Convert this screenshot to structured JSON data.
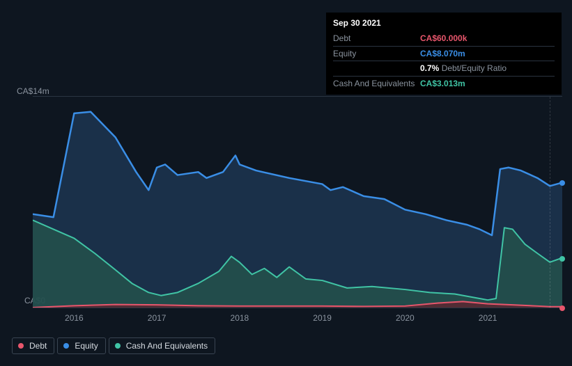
{
  "tooltip": {
    "date": "Sep 30 2021",
    "rows": [
      {
        "label": "Debt",
        "value": "CA$60.000k",
        "color": "#e8566c"
      },
      {
        "label": "Equity",
        "value": "CA$8.070m",
        "color": "#3a8ee6"
      },
      {
        "label": "",
        "value_prefix": "0.7%",
        "value_suffix": " Debt/Equity Ratio",
        "color": "#ffffff"
      },
      {
        "label": "Cash And Equivalents",
        "value": "CA$3.013m",
        "color": "#40c4a5"
      }
    ]
  },
  "chart": {
    "type": "area",
    "background_color": "#0e1620",
    "grid_color": "#2b3542",
    "y_axis": {
      "min": 0,
      "max": 14,
      "top_label": "CA$14m",
      "bottom_label": "CA$0"
    },
    "x_axis": {
      "min": 2015.5,
      "max": 2021.9,
      "ticks": [
        2016,
        2017,
        2018,
        2019,
        2020,
        2021
      ]
    },
    "cursor_x": 2021.75,
    "series": [
      {
        "name": "Equity",
        "color": "#3a8ee6",
        "fill": "#1f3a57",
        "fill_opacity": 0.75,
        "line_width": 2.5,
        "data": [
          [
            2015.5,
            6.2
          ],
          [
            2015.75,
            6.0
          ],
          [
            2016.0,
            12.9
          ],
          [
            2016.2,
            13.0
          ],
          [
            2016.5,
            11.3
          ],
          [
            2016.75,
            9.0
          ],
          [
            2016.9,
            7.8
          ],
          [
            2017.0,
            9.3
          ],
          [
            2017.1,
            9.5
          ],
          [
            2017.25,
            8.8
          ],
          [
            2017.5,
            9.0
          ],
          [
            2017.6,
            8.6
          ],
          [
            2017.8,
            9.0
          ],
          [
            2017.95,
            10.1
          ],
          [
            2018.0,
            9.5
          ],
          [
            2018.2,
            9.1
          ],
          [
            2018.6,
            8.6
          ],
          [
            2019.0,
            8.2
          ],
          [
            2019.1,
            7.8
          ],
          [
            2019.25,
            8.0
          ],
          [
            2019.5,
            7.4
          ],
          [
            2019.75,
            7.2
          ],
          [
            2020.0,
            6.5
          ],
          [
            2020.25,
            6.2
          ],
          [
            2020.5,
            5.8
          ],
          [
            2020.75,
            5.5
          ],
          [
            2020.9,
            5.2
          ],
          [
            2021.05,
            4.8
          ],
          [
            2021.15,
            9.2
          ],
          [
            2021.25,
            9.3
          ],
          [
            2021.4,
            9.1
          ],
          [
            2021.6,
            8.6
          ],
          [
            2021.75,
            8.07
          ],
          [
            2021.9,
            8.3
          ]
        ]
      },
      {
        "name": "Cash And Equivalents",
        "color": "#40c4a5",
        "fill": "#25564c",
        "fill_opacity": 0.75,
        "line_width": 2,
        "data": [
          [
            2015.5,
            5.8
          ],
          [
            2015.75,
            5.2
          ],
          [
            2016.0,
            4.6
          ],
          [
            2016.25,
            3.6
          ],
          [
            2016.5,
            2.5
          ],
          [
            2016.7,
            1.6
          ],
          [
            2016.9,
            1.0
          ],
          [
            2017.05,
            0.8
          ],
          [
            2017.25,
            1.0
          ],
          [
            2017.5,
            1.6
          ],
          [
            2017.75,
            2.4
          ],
          [
            2017.9,
            3.4
          ],
          [
            2018.0,
            3.0
          ],
          [
            2018.15,
            2.2
          ],
          [
            2018.3,
            2.6
          ],
          [
            2018.45,
            2.0
          ],
          [
            2018.6,
            2.7
          ],
          [
            2018.8,
            1.9
          ],
          [
            2019.0,
            1.8
          ],
          [
            2019.3,
            1.3
          ],
          [
            2019.6,
            1.4
          ],
          [
            2020.0,
            1.2
          ],
          [
            2020.3,
            1.0
          ],
          [
            2020.6,
            0.9
          ],
          [
            2020.9,
            0.6
          ],
          [
            2021.0,
            0.5
          ],
          [
            2021.1,
            0.6
          ],
          [
            2021.2,
            5.3
          ],
          [
            2021.3,
            5.2
          ],
          [
            2021.45,
            4.2
          ],
          [
            2021.6,
            3.6
          ],
          [
            2021.75,
            3.013
          ],
          [
            2021.9,
            3.3
          ]
        ]
      },
      {
        "name": "Debt",
        "color": "#e8566c",
        "fill": "#5a2731",
        "fill_opacity": 0.85,
        "line_width": 2,
        "data": [
          [
            2015.5,
            0.0
          ],
          [
            2016.0,
            0.12
          ],
          [
            2016.5,
            0.2
          ],
          [
            2017.0,
            0.18
          ],
          [
            2017.5,
            0.12
          ],
          [
            2018.0,
            0.1
          ],
          [
            2018.5,
            0.1
          ],
          [
            2019.0,
            0.1
          ],
          [
            2019.5,
            0.08
          ],
          [
            2020.0,
            0.1
          ],
          [
            2020.4,
            0.3
          ],
          [
            2020.7,
            0.4
          ],
          [
            2021.0,
            0.25
          ],
          [
            2021.3,
            0.18
          ],
          [
            2021.6,
            0.1
          ],
          [
            2021.75,
            0.06
          ],
          [
            2021.9,
            0.06
          ]
        ]
      }
    ],
    "legend": [
      {
        "label": "Debt",
        "color": "#e8566c"
      },
      {
        "label": "Equity",
        "color": "#3a8ee6"
      },
      {
        "label": "Cash And Equivalents",
        "color": "#40c4a5"
      }
    ]
  }
}
